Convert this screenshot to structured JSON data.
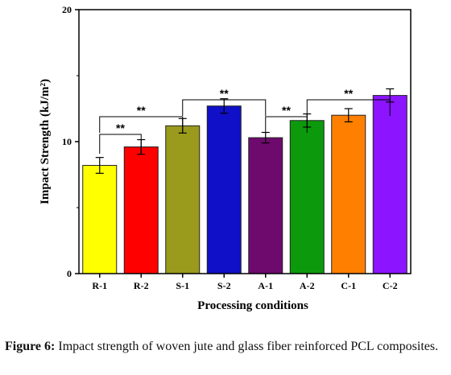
{
  "chart_data": {
    "type": "bar",
    "categories": [
      "R-1",
      "R-2",
      "S-1",
      "S-2",
      "A-1",
      "A-2",
      "C-1",
      "C-2"
    ],
    "values": [
      8.2,
      9.6,
      11.2,
      12.7,
      10.3,
      11.6,
      12.0,
      13.5
    ],
    "errors": [
      0.6,
      0.55,
      0.55,
      0.55,
      0.4,
      0.5,
      0.5,
      0.5
    ],
    "colors": [
      "#ffff00",
      "#ff0000",
      "#9a9a1c",
      "#1010c8",
      "#6e0a6e",
      "#0c9a0c",
      "#ff8000",
      "#8c14ff"
    ],
    "ylabel": "Impact Strength (kJ/m²)",
    "xlabel": "Processing conditions",
    "ylim": [
      0,
      20
    ],
    "yticks": [
      0,
      10,
      20
    ],
    "significance": [
      {
        "from": 0,
        "to": 1,
        "label": "**"
      },
      {
        "from": 0,
        "to": 2,
        "label": "**"
      },
      {
        "from": 2,
        "to": 4,
        "label": "**"
      },
      {
        "from": 4,
        "to": 5,
        "label": "**"
      },
      {
        "from": 5,
        "to": 7,
        "label": "**"
      }
    ]
  },
  "caption": {
    "lead": "Figure 6:",
    "text": " Impact strength of woven jute and glass fiber reinforced PCL composites."
  }
}
